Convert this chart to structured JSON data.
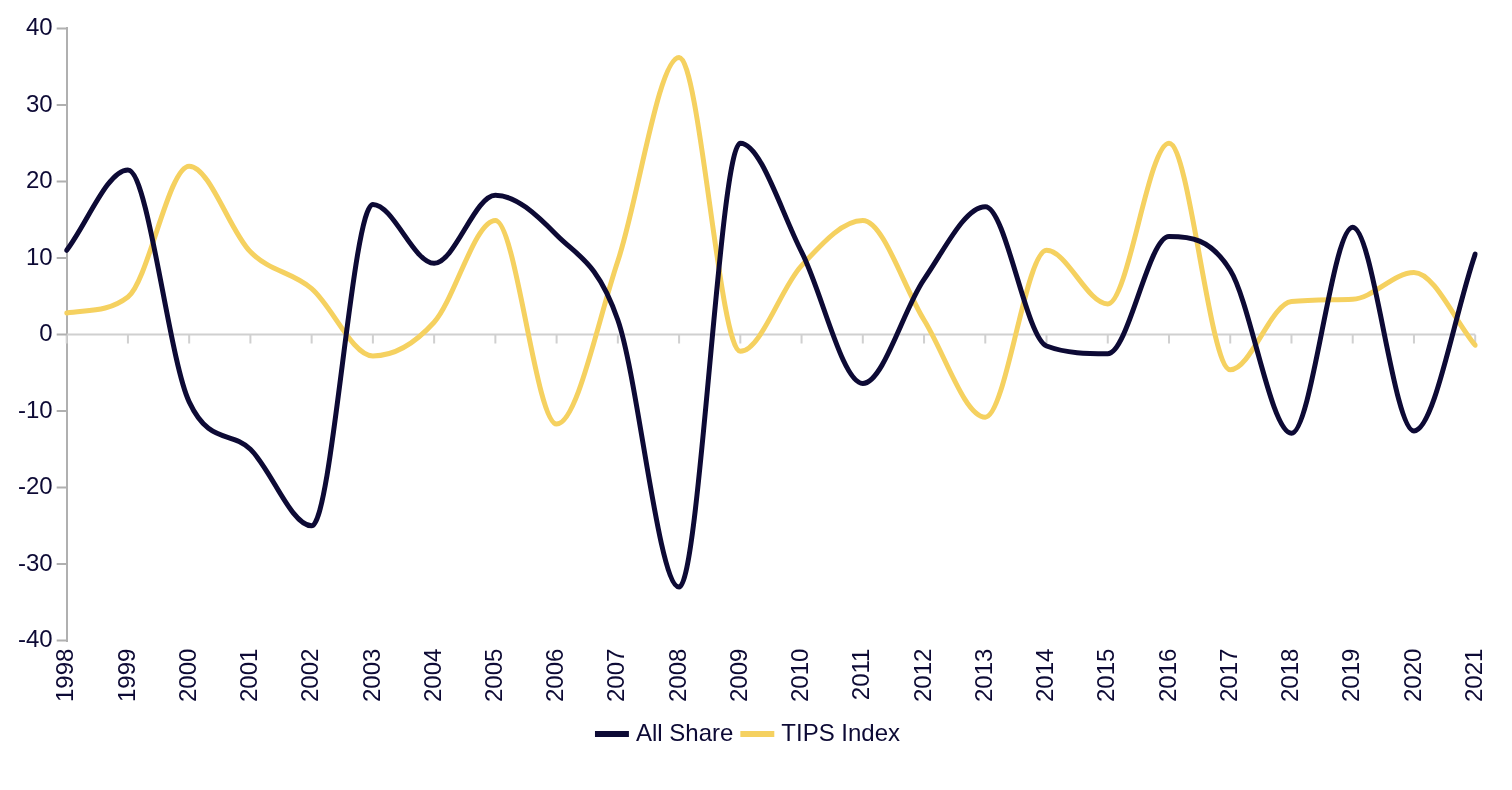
{
  "chart_data": {
    "type": "line",
    "categories": [
      "1998",
      "1999",
      "2000",
      "2001",
      "2002",
      "2003",
      "2004",
      "2005",
      "2006",
      "2007",
      "2008",
      "2009",
      "2010",
      "2011",
      "2012",
      "2013",
      "2014",
      "2015",
      "2016",
      "2017",
      "2018",
      "2019",
      "2020",
      "2021"
    ],
    "series": [
      {
        "name": "All Share",
        "color": "#0d0a35",
        "values": [
          11,
          21.5,
          -8.8,
          -15,
          -25,
          17,
          9.3,
          18.2,
          13,
          1.9,
          -33,
          25,
          10.8,
          -6.4,
          7.2,
          16.7,
          -1.5,
          -2.5,
          12.8,
          8.4,
          -12.9,
          14,
          -12.6,
          10.5
        ]
      },
      {
        "name": "TIPS Index",
        "color": "#f5d160",
        "values": [
          2.8,
          4.9,
          22,
          10.8,
          6,
          -2.8,
          1.6,
          14.9,
          -11.7,
          9.6,
          36.2,
          -2.2,
          9,
          14.9,
          1.9,
          -10.8,
          11,
          4,
          25,
          -4.6,
          4.3,
          4.6,
          8.1,
          -1.4
        ]
      }
    ],
    "ylim": [
      -40,
      40
    ],
    "yticks": [
      -40,
      -30,
      -20,
      -10,
      0,
      10,
      20,
      30,
      40
    ],
    "grid": false,
    "ref_lines": [
      {
        "axis": "y",
        "value": 0,
        "color": "#d0d0d0"
      }
    ],
    "legend": "bottom",
    "marker": "none",
    "line_style": "solid"
  }
}
